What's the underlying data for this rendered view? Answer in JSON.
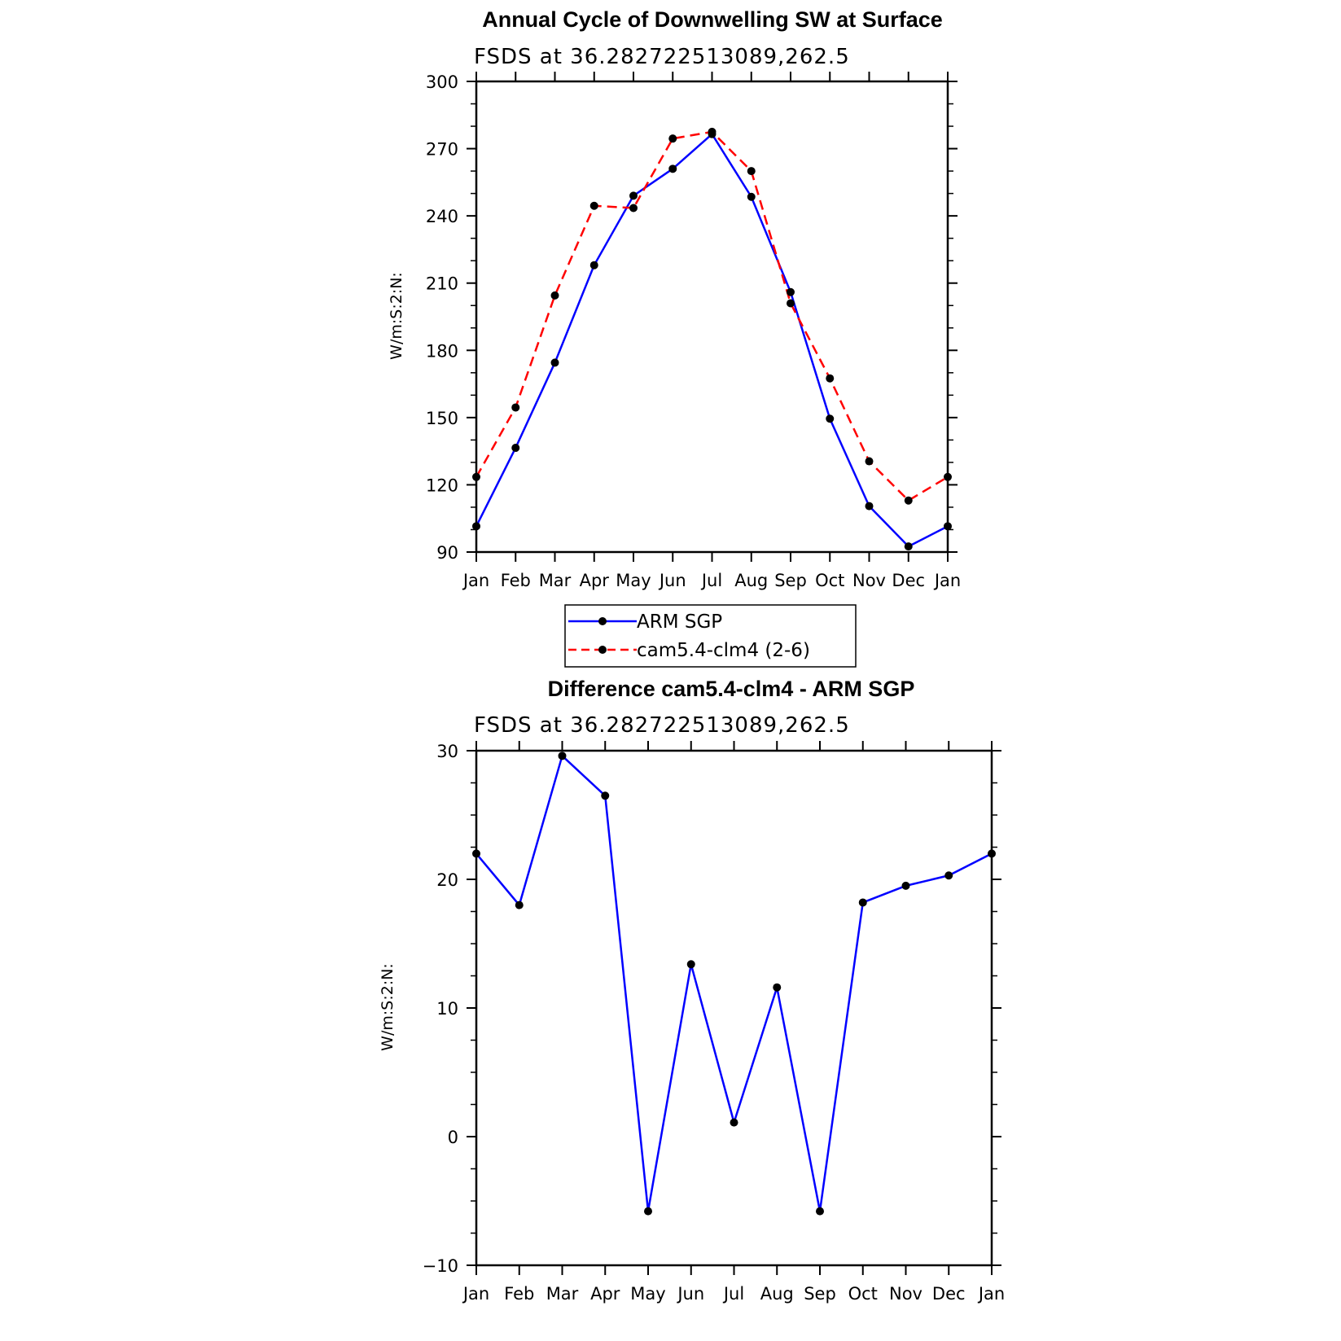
{
  "chart_data": [
    {
      "type": "line",
      "title": "Annual Cycle of Downwelling SW at Surface",
      "subtitle": "FSDS at 36.282722513089,262.5",
      "xlabel": "",
      "ylabel": "W/m:S:2:N:",
      "categories": [
        "Jan",
        "Feb",
        "Mar",
        "Apr",
        "May",
        "Jun",
        "Jul",
        "Aug",
        "Sep",
        "Oct",
        "Nov",
        "Dec",
        "Jan"
      ],
      "ylim": [
        90,
        300
      ],
      "yticks": [
        90,
        120,
        150,
        180,
        210,
        240,
        270,
        300
      ],
      "series": [
        {
          "name": "ARM SGP",
          "color": "#0000ff",
          "dash": "solid",
          "values": [
            101.5,
            136.5,
            174.5,
            218,
            249,
            261,
            276.5,
            248.5,
            206,
            149.5,
            110.5,
            92.5,
            101.5
          ]
        },
        {
          "name": "cam5.4-clm4 (2-6)",
          "color": "#ff0000",
          "dash": "dashed",
          "values": [
            123.5,
            154.5,
            204.5,
            244.5,
            243.5,
            274.5,
            277.5,
            260,
            201,
            167.5,
            130.5,
            113,
            123.5
          ]
        }
      ],
      "legend": "below"
    },
    {
      "type": "line",
      "title": "Difference cam5.4-clm4 - ARM SGP",
      "subtitle": "FSDS at 36.282722513089,262.5",
      "xlabel": "",
      "ylabel": "W/m:S:2:N:",
      "categories": [
        "Jan",
        "Feb",
        "Mar",
        "Apr",
        "May",
        "Jun",
        "Jul",
        "Aug",
        "Sep",
        "Oct",
        "Nov",
        "Dec",
        "Jan"
      ],
      "ylim": [
        -10,
        30
      ],
      "yticks": [
        -10,
        0,
        10,
        20,
        30
      ],
      "ytick_labels": [
        "−10",
        "0",
        "10",
        "20",
        "30"
      ],
      "series": [
        {
          "name": "",
          "color": "#0000ff",
          "dash": "solid",
          "values": [
            22,
            18,
            29.6,
            26.5,
            -5.8,
            13.4,
            1.1,
            11.6,
            -5.8,
            18.2,
            19.5,
            20.3,
            22
          ]
        }
      ]
    }
  ]
}
